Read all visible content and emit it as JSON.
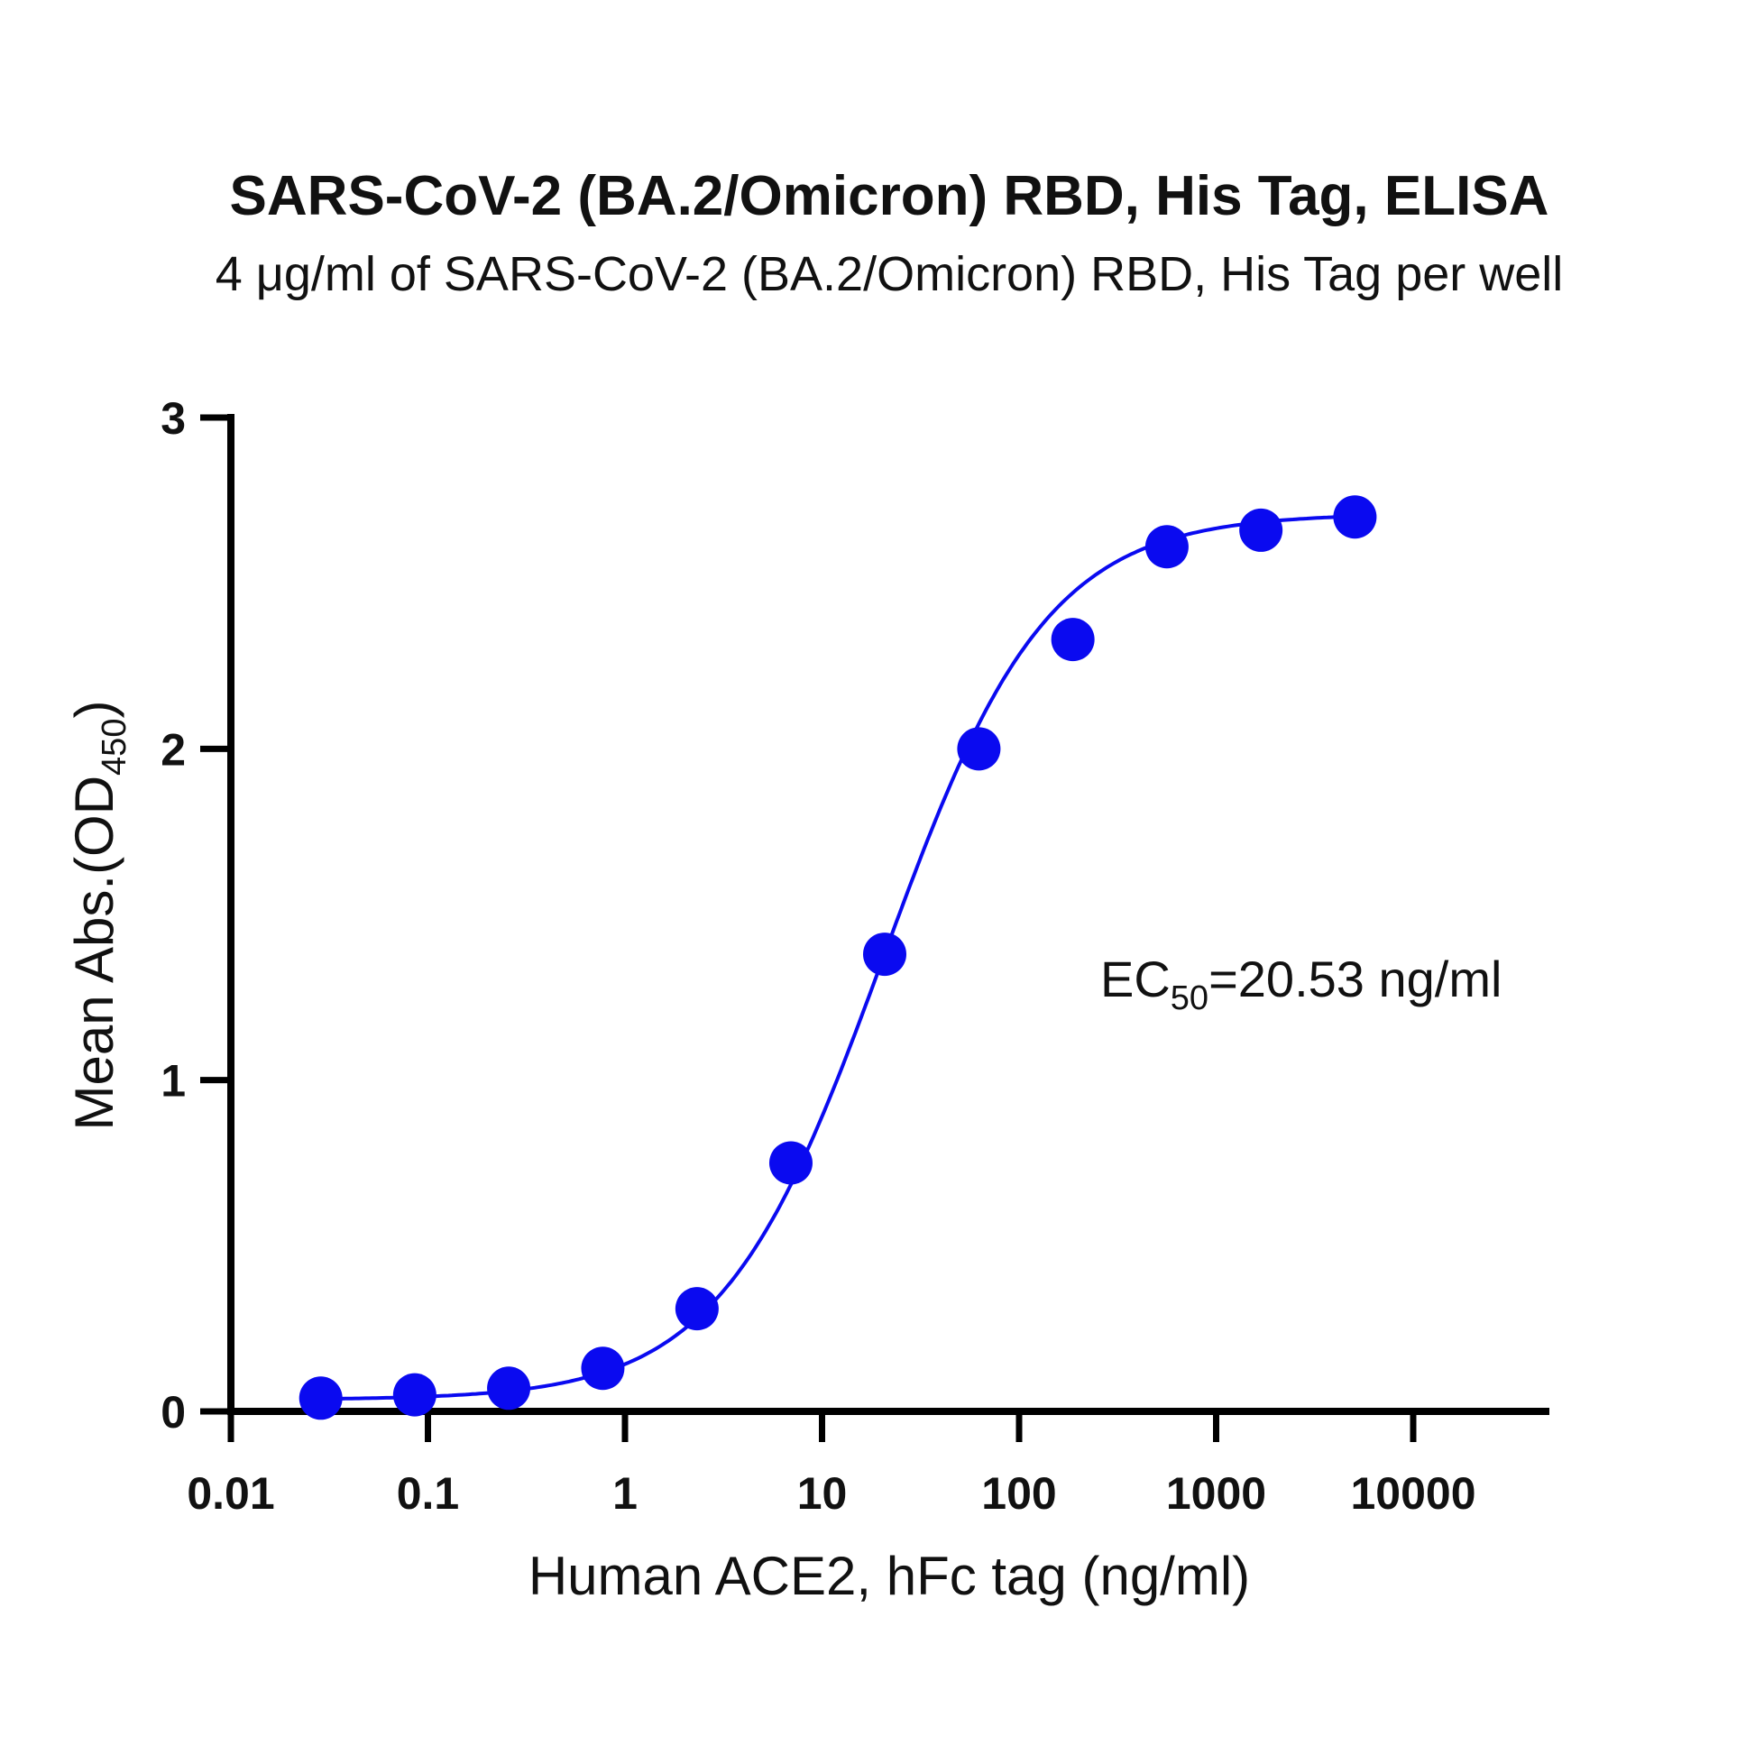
{
  "chart_data": {
    "type": "scatter",
    "title": "SARS-CoV-2 (BA.2/Omicron) RBD, His Tag, ELISA",
    "subtitle": "4 μg/ml of SARS-CoV-2 (BA.2/Omicron) RBD, His Tag per well",
    "xlabel": "Human ACE2, hFc tag (ng/ml)",
    "ylabel_main": "Mean Abs.(OD",
    "ylabel_sub": "450",
    "ylabel_close": ")",
    "xscale": "log10",
    "xlim": [
      0.01,
      50000
    ],
    "ylim": [
      0,
      3
    ],
    "x_ticks": [
      0.01,
      0.1,
      1,
      10,
      100,
      1000,
      10000
    ],
    "x_tick_labels": [
      "0.01",
      "0.1",
      "1",
      "10",
      "100",
      "1000",
      "10000"
    ],
    "y_ticks": [
      0,
      1,
      2,
      3
    ],
    "y_tick_labels": [
      "0",
      "1",
      "2",
      "3"
    ],
    "series": [
      {
        "name": "Human ACE2, hFc tag",
        "color": "#0a0af0",
        "x": [
          0.0286,
          0.0857,
          0.257,
          0.772,
          2.32,
          6.95,
          20.8,
          62.5,
          187.5,
          562.5,
          1687.5,
          5062.5
        ],
        "y": [
          0.04,
          0.05,
          0.07,
          0.13,
          0.31,
          0.75,
          1.38,
          2.0,
          2.33,
          2.61,
          2.66,
          2.7
        ]
      }
    ],
    "fit": {
      "model": "4PL",
      "bottom": 0.035,
      "top": 2.71,
      "ec50": 20.53,
      "hill": 1.05
    },
    "annotation": {
      "prefix": "EC",
      "sub": "50",
      "suffix": "=20.53 ng/ml"
    }
  }
}
